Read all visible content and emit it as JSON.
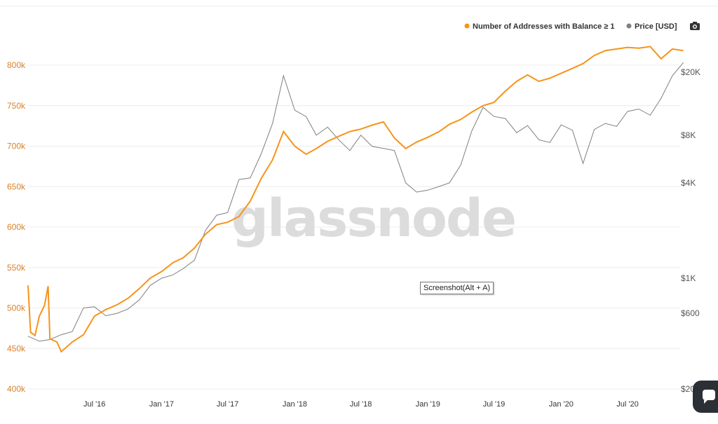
{
  "watermark": "glassnode",
  "tooltip": "Screenshot(Alt + A)",
  "camera_icon": "camera-icon",
  "chat_icon": "chat-bubble-icon",
  "colors": {
    "addresses": "#f7931a",
    "price": "#7f7f7f",
    "left_axis": "#d9822b"
  },
  "chart_data": {
    "type": "line",
    "legend": [
      "Number of Addresses with Balance ≥ 1",
      "Price [USD]"
    ],
    "legend_position": "top-right",
    "grid": true,
    "y_left": {
      "label": "Number of Addresses with Balance ≥ 1",
      "range": [
        400000,
        820000
      ],
      "ticks": [
        400000,
        450000,
        500000,
        550000,
        600000,
        650000,
        700000,
        750000,
        800000
      ],
      "tick_labels": [
        "400k",
        "450k",
        "500k",
        "550k",
        "600k",
        "650k",
        "700k",
        "750k",
        "800k"
      ]
    },
    "y_right": {
      "label": "Price [USD]",
      "scale": "log",
      "ticks": [
        200,
        600,
        1000,
        4000,
        8000,
        20000
      ],
      "tick_labels": [
        "$200",
        "$600",
        "$1K",
        "$4K",
        "$8K",
        "$20K"
      ]
    },
    "x_ticks": [
      "Jul '16",
      "Jan '17",
      "Jul '17",
      "Jan '18",
      "Jul '18",
      "Jan '19",
      "Jul '19",
      "Jan '20",
      "Jul '20"
    ],
    "x_range": [
      "2016-01",
      "2020-12"
    ],
    "series": [
      {
        "name": "Number of Addresses with Balance ≥ 1",
        "axis": "left",
        "points": [
          [
            "2016-01",
            528000
          ],
          [
            "2016-01-08",
            470000
          ],
          [
            "2016-01-20",
            466000
          ],
          [
            "2016-02",
            490000
          ],
          [
            "2016-02-15",
            503000
          ],
          [
            "2016-02-25",
            527000
          ],
          [
            "2016-03",
            462000
          ],
          [
            "2016-03-20",
            458000
          ],
          [
            "2016-04",
            446000
          ],
          [
            "2016-05",
            458000
          ],
          [
            "2016-06",
            467000
          ],
          [
            "2016-07",
            490000
          ],
          [
            "2016-08",
            498000
          ],
          [
            "2016-09",
            504000
          ],
          [
            "2016-10",
            512000
          ],
          [
            "2016-11",
            524000
          ],
          [
            "2016-12",
            537000
          ],
          [
            "2017-01",
            545000
          ],
          [
            "2017-02",
            556000
          ],
          [
            "2017-03",
            562000
          ],
          [
            "2017-04",
            574000
          ],
          [
            "2017-05",
            591000
          ],
          [
            "2017-06",
            603000
          ],
          [
            "2017-07",
            606000
          ],
          [
            "2017-08",
            613000
          ],
          [
            "2017-09",
            632000
          ],
          [
            "2017-10",
            660000
          ],
          [
            "2017-11",
            683000
          ],
          [
            "2017-12",
            718000
          ],
          [
            "2018-01",
            700000
          ],
          [
            "2018-02",
            690000
          ],
          [
            "2018-03",
            697000
          ],
          [
            "2018-04",
            706000
          ],
          [
            "2018-05",
            712000
          ],
          [
            "2018-06",
            718000
          ],
          [
            "2018-07",
            721000
          ],
          [
            "2018-08",
            726000
          ],
          [
            "2018-09",
            730000
          ],
          [
            "2018-10",
            710000
          ],
          [
            "2018-11",
            697000
          ],
          [
            "2018-12",
            705000
          ],
          [
            "2019-01",
            711000
          ],
          [
            "2019-02",
            718000
          ],
          [
            "2019-03",
            727000
          ],
          [
            "2019-04",
            733000
          ],
          [
            "2019-05",
            742000
          ],
          [
            "2019-06",
            750000
          ],
          [
            "2019-07",
            754000
          ],
          [
            "2019-08",
            768000
          ],
          [
            "2019-09",
            780000
          ],
          [
            "2019-10",
            788000
          ],
          [
            "2019-11",
            780000
          ],
          [
            "2019-12",
            784000
          ],
          [
            "2020-01",
            790000
          ],
          [
            "2020-02",
            796000
          ],
          [
            "2020-03",
            802000
          ],
          [
            "2020-04",
            812000
          ],
          [
            "2020-05",
            818000
          ],
          [
            "2020-06",
            820000
          ],
          [
            "2020-07",
            822000
          ],
          [
            "2020-08",
            821000
          ],
          [
            "2020-09",
            823000
          ],
          [
            "2020-10",
            808000
          ],
          [
            "2020-11",
            820000
          ],
          [
            "2020-12",
            818000
          ]
        ]
      },
      {
        "name": "Price [USD]",
        "axis": "right",
        "points": [
          [
            "2016-01",
            430
          ],
          [
            "2016-02",
            400
          ],
          [
            "2016-03",
            410
          ],
          [
            "2016-04",
            440
          ],
          [
            "2016-05",
            460
          ],
          [
            "2016-06",
            650
          ],
          [
            "2016-07",
            660
          ],
          [
            "2016-08",
            580
          ],
          [
            "2016-09",
            600
          ],
          [
            "2016-10",
            640
          ],
          [
            "2016-11",
            730
          ],
          [
            "2016-12",
            900
          ],
          [
            "2017-01",
            1000
          ],
          [
            "2017-02",
            1050
          ],
          [
            "2017-03",
            1150
          ],
          [
            "2017-04",
            1300
          ],
          [
            "2017-05",
            2000
          ],
          [
            "2017-06",
            2500
          ],
          [
            "2017-07",
            2600
          ],
          [
            "2017-08",
            4200
          ],
          [
            "2017-09",
            4300
          ],
          [
            "2017-10",
            6100
          ],
          [
            "2017-11",
            9500
          ],
          [
            "2017-12",
            19000
          ],
          [
            "2018-01",
            11500
          ],
          [
            "2018-02",
            10500
          ],
          [
            "2018-03",
            8000
          ],
          [
            "2018-04",
            9000
          ],
          [
            "2018-05",
            7500
          ],
          [
            "2018-06",
            6400
          ],
          [
            "2018-07",
            8000
          ],
          [
            "2018-08",
            6800
          ],
          [
            "2018-09",
            6600
          ],
          [
            "2018-10",
            6400
          ],
          [
            "2018-11",
            4000
          ],
          [
            "2018-12",
            3500
          ],
          [
            "2019-01",
            3600
          ],
          [
            "2019-02",
            3800
          ],
          [
            "2019-03",
            4000
          ],
          [
            "2019-04",
            5200
          ],
          [
            "2019-05",
            8500
          ],
          [
            "2019-06",
            12000
          ],
          [
            "2019-07",
            10500
          ],
          [
            "2019-08",
            10200
          ],
          [
            "2019-09",
            8300
          ],
          [
            "2019-10",
            9200
          ],
          [
            "2019-11",
            7500
          ],
          [
            "2019-12",
            7200
          ],
          [
            "2020-01",
            9300
          ],
          [
            "2020-02",
            8600
          ],
          [
            "2020-03",
            5300
          ],
          [
            "2020-04",
            8700
          ],
          [
            "2020-05",
            9500
          ],
          [
            "2020-06",
            9100
          ],
          [
            "2020-07",
            11300
          ],
          [
            "2020-08",
            11700
          ],
          [
            "2020-09",
            10700
          ],
          [
            "2020-10",
            13700
          ],
          [
            "2020-11",
            19000
          ],
          [
            "2020-12",
            23000
          ]
        ]
      }
    ]
  }
}
